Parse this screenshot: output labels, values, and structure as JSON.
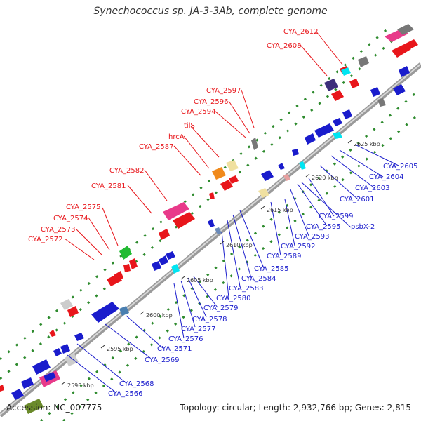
{
  "title": "Synechococcus sp. JA-3-3Ab, complete genome",
  "footer": {
    "accession": "Accession: NC_007775",
    "topology": "Topology: circular; Length: 2,932,766 bp; Genes: 2,815"
  },
  "colors": {
    "top_strand_labels": "#e8161b",
    "bottom_strand_labels": "#1a1ccc",
    "backbone": "#8c8c8c"
  },
  "ticks": [
    "2590 kbp",
    "2595 kbp",
    "2600 kbp",
    "2605 kbp",
    "2610 kbp",
    "2615 kbp",
    "2620 kbp",
    "2625 kbp"
  ],
  "top_labels": [
    "CYA_2612",
    "CYA_2608",
    "CYA_2597",
    "CYA_2596",
    "CYA_2594",
    "tilS",
    "hrcA",
    "CYA_2587",
    "CYA_2582",
    "CYA_2581",
    "CYA_2575",
    "CYA_2574",
    "CYA_2573",
    "CYA_2572"
  ],
  "bottom_labels": [
    "CYA_2605",
    "CYA_2604",
    "CYA_2603",
    "CYA_2601",
    "CYA_2599",
    "psbX-2",
    "CYA_2595",
    "CYA_2593",
    "CYA_2592",
    "CYA_2589",
    "CYA_2585",
    "CYA_2584",
    "CYA_2583",
    "CYA_2580",
    "CYA_2579",
    "CYA_2578",
    "CYA_2577",
    "CYA_2576",
    "CYA_2571",
    "CYA_2569",
    "CYA_2568",
    "CYA_2566"
  ]
}
